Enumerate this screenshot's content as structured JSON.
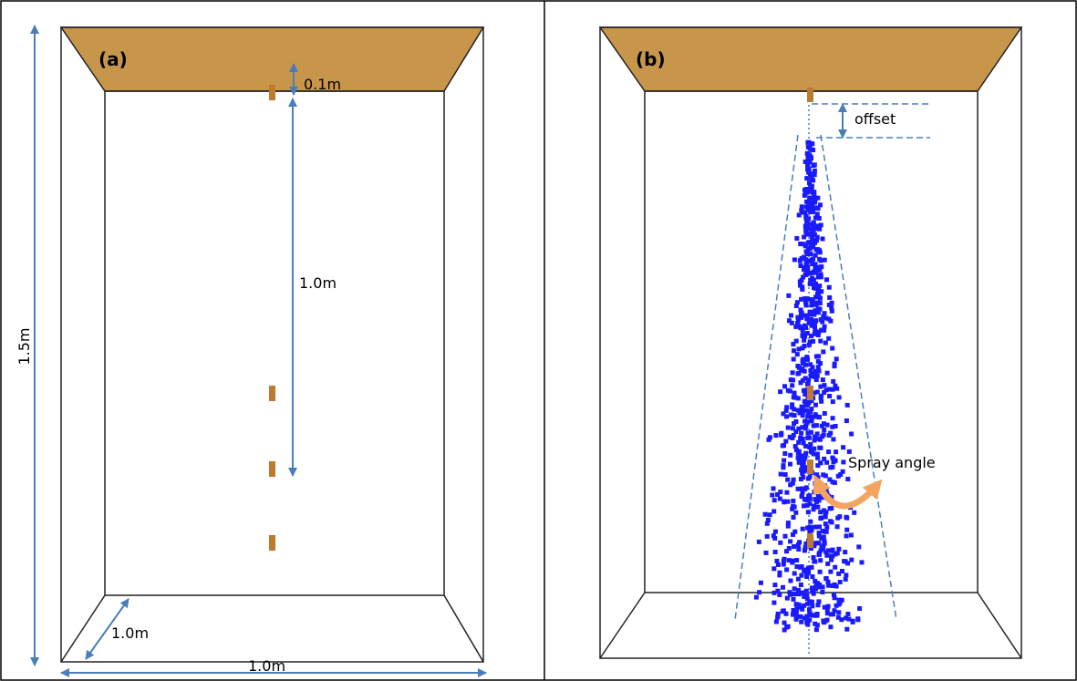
{
  "panel_a": {
    "label": "(a)",
    "nozzle_gap": "0.1m",
    "nozzle_spacing": "1.0m",
    "height": "1.5m",
    "depth": "1.0m",
    "width": "1.0m"
  },
  "panel_b": {
    "label": "(b)",
    "offset": "offset",
    "spray_angle": "Spray angle"
  }
}
